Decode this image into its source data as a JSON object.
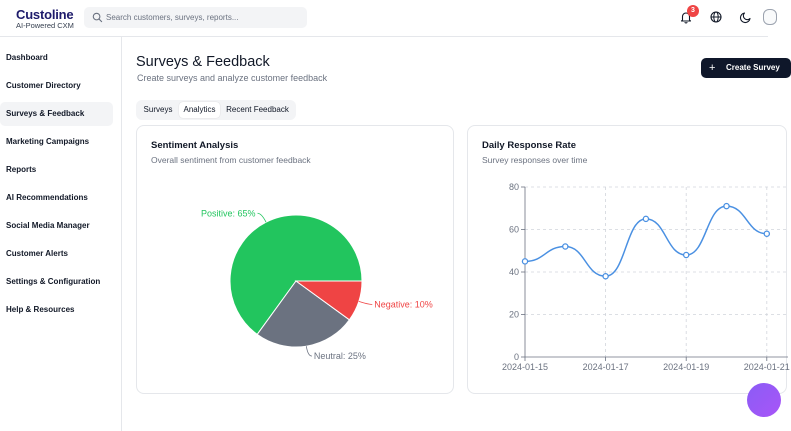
{
  "app": {
    "name": "Custoline",
    "tagline": "AI-Powered CXM"
  },
  "search": {
    "placeholder": "Search customers, surveys, reports..."
  },
  "header": {
    "notification_count": "3"
  },
  "sidebar": {
    "items": [
      {
        "label": "Dashboard"
      },
      {
        "label": "Customer Directory"
      },
      {
        "label": "Surveys & Feedback",
        "active": true
      },
      {
        "label": "Marketing Campaigns"
      },
      {
        "label": "Reports"
      },
      {
        "label": "AI Recommendations"
      },
      {
        "label": "Social Media Manager"
      },
      {
        "label": "Customer Alerts"
      },
      {
        "label": "Settings & Configuration"
      },
      {
        "label": "Help & Resources"
      }
    ]
  },
  "page": {
    "title": "Surveys & Feedback",
    "subtitle": "Create surveys and analyze customer feedback",
    "create_button": "Create Survey"
  },
  "tabs": [
    {
      "label": "Surveys"
    },
    {
      "label": "Analytics",
      "active": true
    },
    {
      "label": "Recent Feedback"
    }
  ],
  "sentiment_card": {
    "title": "Sentiment Analysis",
    "subtitle": "Overall sentiment from customer feedback"
  },
  "response_card": {
    "title": "Daily Response Rate",
    "subtitle": "Survey responses over time"
  },
  "colors": {
    "positive": "#22c55e",
    "neutral": "#6b7280",
    "negative": "#ef4444",
    "line": "#4a90e2",
    "brand": "#1e1b6b"
  },
  "chart_data": [
    {
      "type": "pie",
      "slices": [
        {
          "label": "Positive",
          "value": 65,
          "display": "Positive: 65%"
        },
        {
          "label": "Neutral",
          "value": 25,
          "display": "Neutral: 25%"
        },
        {
          "label": "Negative",
          "value": 10,
          "display": "Negative: 10%"
        }
      ]
    },
    {
      "type": "line",
      "x": [
        "2024-01-15",
        "2024-01-16",
        "2024-01-17",
        "2024-01-18",
        "2024-01-19",
        "2024-01-20",
        "2024-01-21"
      ],
      "y": [
        45,
        52,
        38,
        65,
        48,
        71,
        58
      ],
      "x_tick_labels": [
        "2024-01-15",
        "2024-01-17",
        "2024-01-19",
        "2024-01-21"
      ],
      "y_ticks": [
        0,
        20,
        40,
        60,
        80
      ],
      "ylim": [
        0,
        80
      ],
      "grid": true
    }
  ]
}
